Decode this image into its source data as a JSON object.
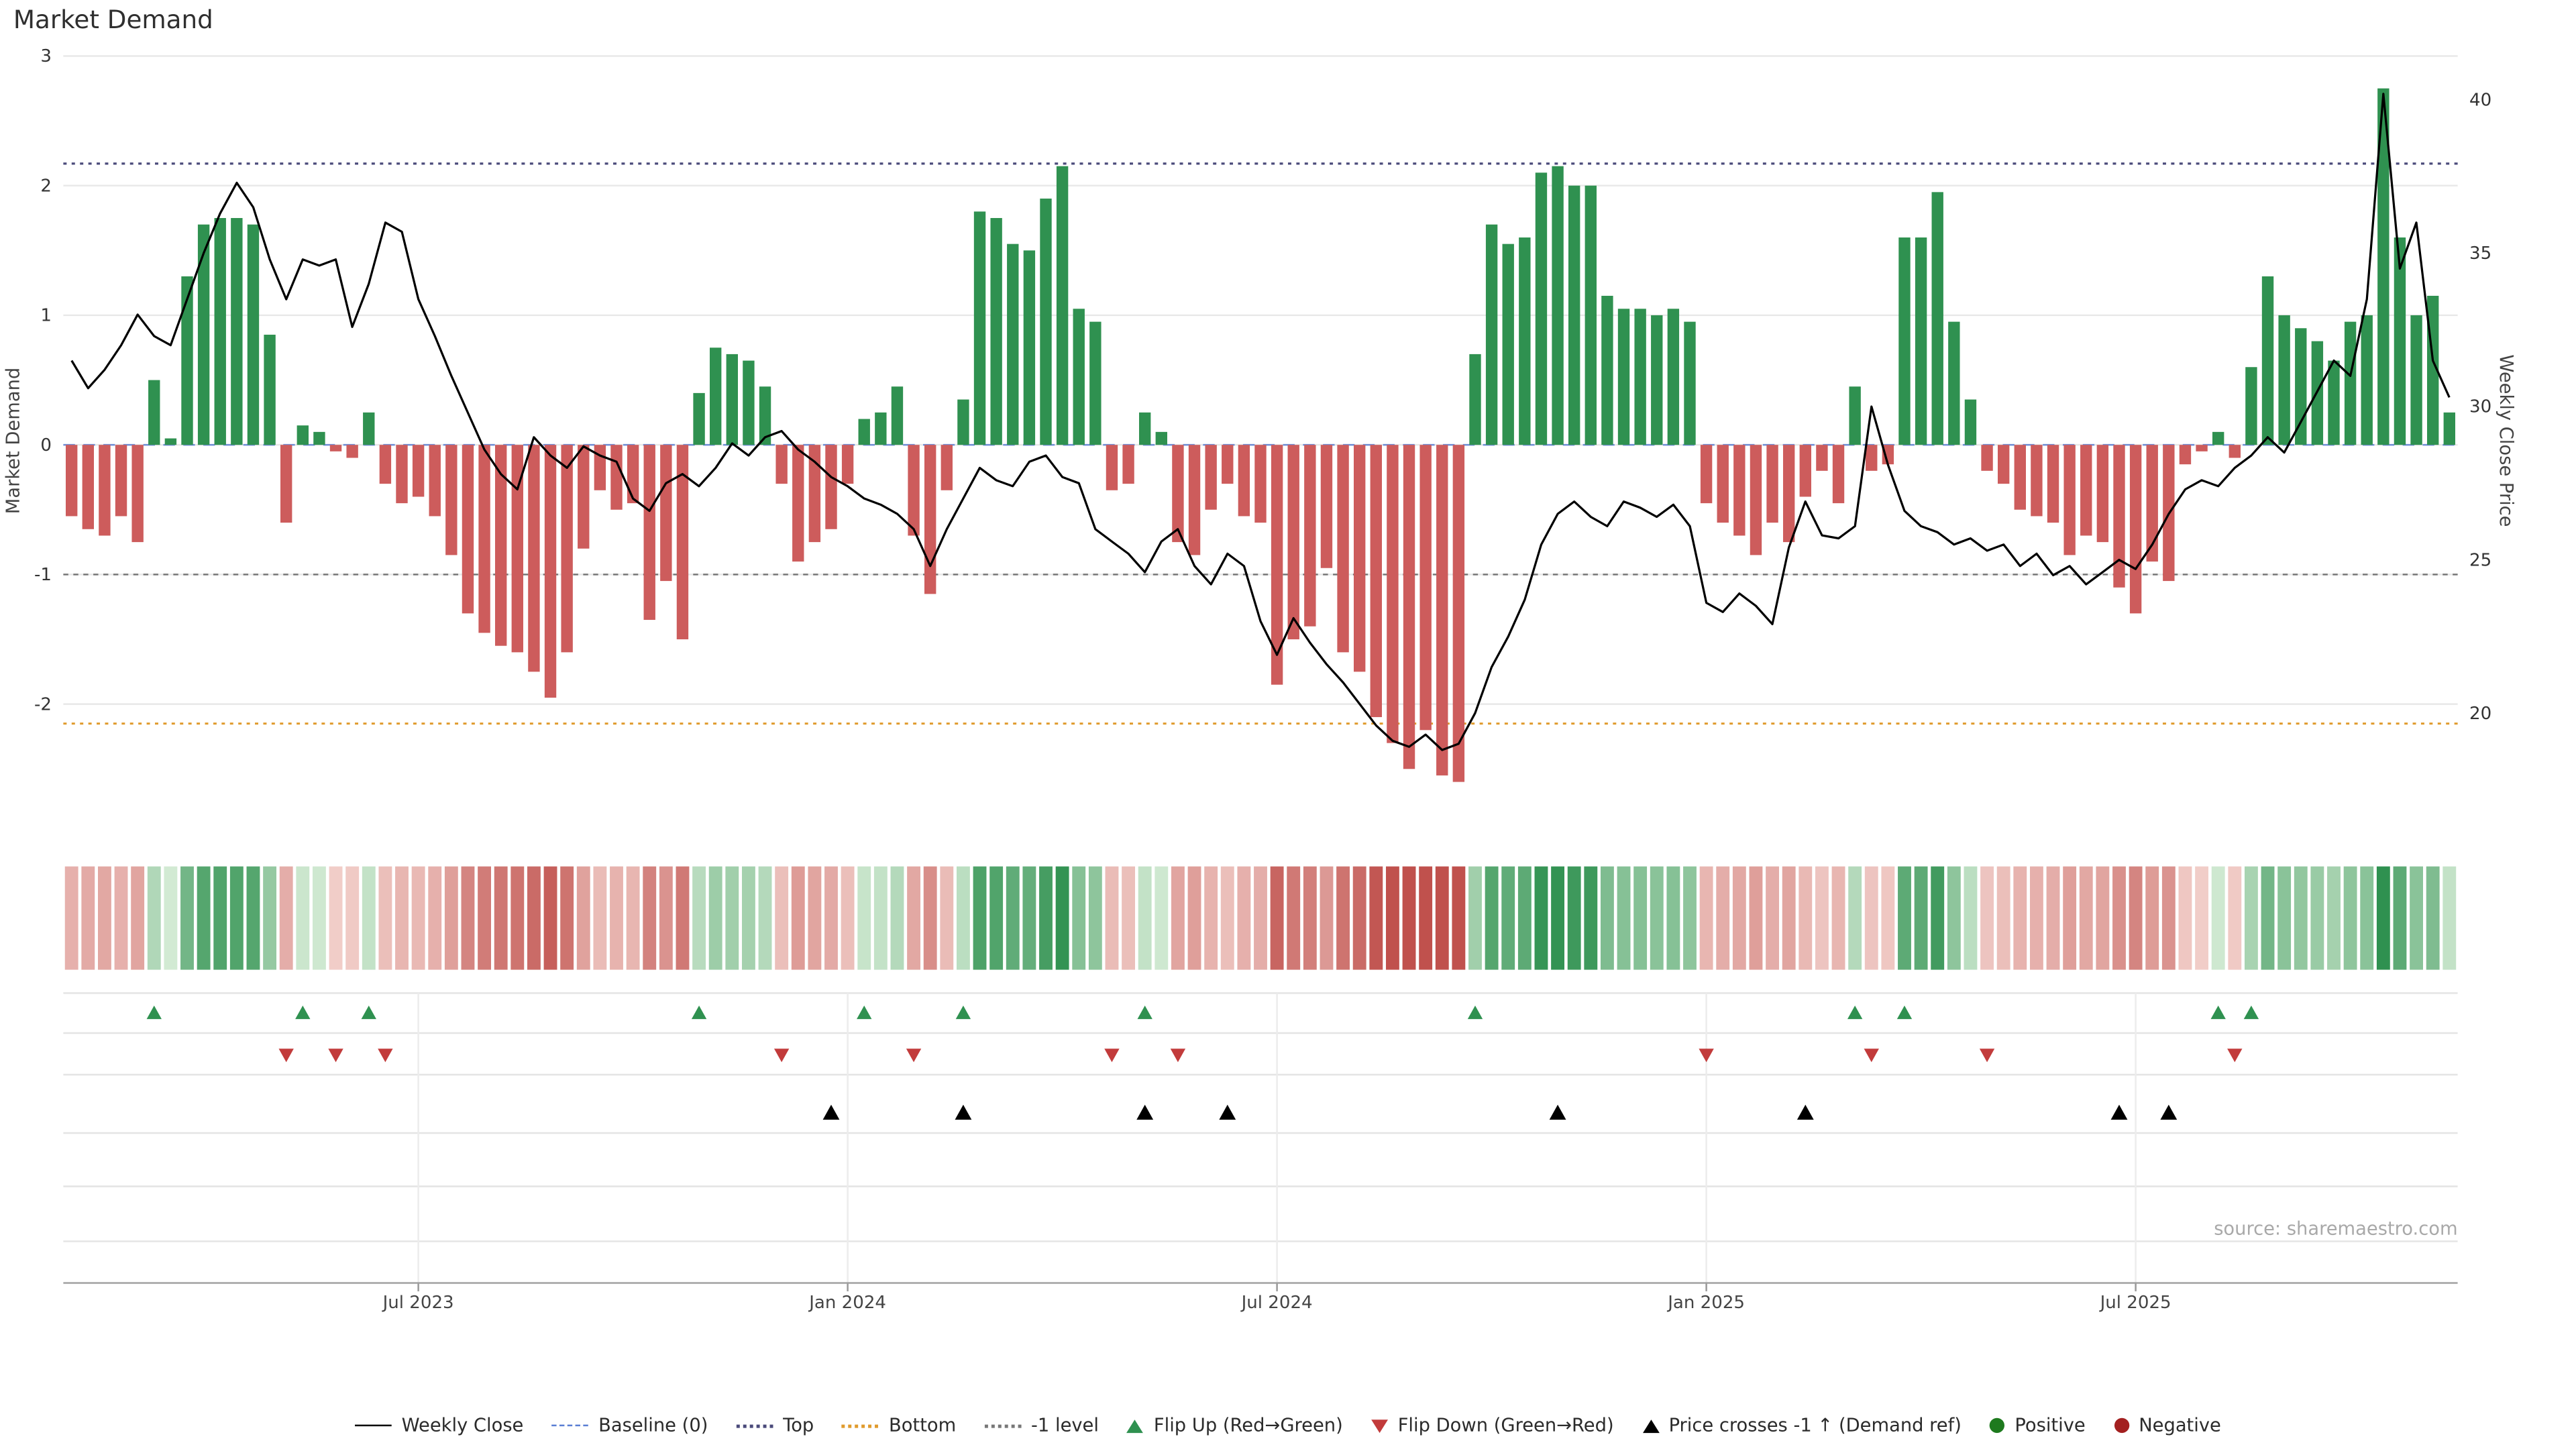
{
  "title": "Market Demand",
  "left_axis_label": "Market Demand",
  "right_axis_label": "Weekly Close Price",
  "source": "source: sharemaestro.com",
  "legend": [
    {
      "label": "Weekly Close",
      "type": "line",
      "color": "#000000"
    },
    {
      "label": "Baseline (0)",
      "type": "dashed",
      "color": "#5b7fd4"
    },
    {
      "label": "Top",
      "type": "dotted",
      "color": "#4a4a7a"
    },
    {
      "label": "Bottom",
      "type": "dotted",
      "color": "#e09b2d"
    },
    {
      "label": "-1 level",
      "type": "dotted",
      "color": "#777777"
    },
    {
      "label": "Flip Up (Red→Green)",
      "type": "triangle-up",
      "color": "#2f9150"
    },
    {
      "label": "Flip Down (Green→Red)",
      "type": "triangle-down",
      "color": "#c23b3b"
    },
    {
      "label": "Price crosses -1 ↑ (Demand ref)",
      "type": "triangle-up",
      "color": "#000000"
    },
    {
      "label": "Positive",
      "type": "dot",
      "color": "#1e7a1e"
    },
    {
      "label": "Negative",
      "type": "dot",
      "color": "#a32020"
    }
  ],
  "chart_data": {
    "type": "combo",
    "title": "Market Demand",
    "left_axis": {
      "label": "Market Demand",
      "ticks": [
        3,
        2,
        1,
        0,
        -1,
        -2
      ],
      "range": [
        -2.75,
        3.05
      ]
    },
    "right_axis": {
      "label": "Weekly Close Price",
      "ticks": [
        40,
        35,
        30,
        25,
        20
      ],
      "range": [
        18.5,
        41
      ]
    },
    "x_tick_labels": [
      "Jul 2023",
      "Jan 2024",
      "Jul 2024",
      "Jan 2025",
      "Jul 2025"
    ],
    "x_tick_weeks": [
      21,
      47,
      73,
      99,
      125
    ],
    "ref_lines": {
      "top": 2.17,
      "baseline": 0,
      "minus1": -1,
      "bottom": -2.15
    },
    "demand": [
      -0.55,
      -0.65,
      -0.7,
      -0.55,
      -0.75,
      0.5,
      0.05,
      1.3,
      1.7,
      1.75,
      1.75,
      1.7,
      0.85,
      -0.6,
      0.15,
      0.1,
      -0.05,
      -0.1,
      0.25,
      -0.3,
      -0.45,
      -0.4,
      -0.55,
      -0.85,
      -1.3,
      -1.45,
      -1.55,
      -1.6,
      -1.75,
      -1.95,
      -1.6,
      -0.8,
      -0.35,
      -0.5,
      -0.45,
      -1.35,
      -1.05,
      -1.5,
      0.4,
      0.75,
      0.7,
      0.65,
      0.45,
      -0.3,
      -0.9,
      -0.75,
      -0.65,
      -0.3,
      0.2,
      0.25,
      0.45,
      -0.7,
      -1.15,
      -0.35,
      0.35,
      1.8,
      1.75,
      1.55,
      1.5,
      1.9,
      2.15,
      1.05,
      0.95,
      -0.35,
      -0.3,
      0.25,
      0.1,
      -0.75,
      -0.85,
      -0.5,
      -0.3,
      -0.55,
      -0.6,
      -1.85,
      -1.5,
      -1.4,
      -0.95,
      -1.6,
      -1.75,
      -2.1,
      -2.3,
      -2.5,
      -2.2,
      -2.55,
      -2.6,
      0.7,
      1.7,
      1.55,
      1.6,
      2.1,
      2.15,
      2.0,
      2.0,
      1.15,
      1.05,
      1.05,
      1.0,
      1.05,
      0.95,
      -0.45,
      -0.6,
      -0.7,
      -0.85,
      -0.6,
      -0.75,
      -0.4,
      -0.2,
      -0.45,
      0.45,
      -0.2,
      -0.15,
      1.6,
      1.6,
      1.95,
      0.95,
      0.35,
      -0.2,
      -0.3,
      -0.5,
      -0.55,
      -0.6,
      -0.85,
      -0.7,
      -0.75,
      -1.1,
      -1.3,
      -0.9,
      -1.05,
      -0.15,
      -0.05,
      0.1,
      -0.1,
      0.6,
      1.3,
      1.0,
      0.9,
      0.8,
      0.65,
      0.95,
      1.0,
      2.75,
      1.6,
      1.0,
      1.15,
      0.25
    ],
    "price": [
      31.5,
      30.6,
      31.2,
      32.0,
      33.0,
      32.3,
      32.0,
      33.5,
      35.0,
      36.3,
      37.3,
      36.5,
      34.8,
      33.5,
      34.8,
      34.6,
      34.8,
      32.6,
      34.0,
      36.0,
      35.7,
      33.5,
      32.3,
      31.0,
      29.8,
      28.6,
      27.8,
      27.3,
      29.0,
      28.4,
      28.0,
      28.7,
      28.4,
      28.2,
      27.0,
      26.6,
      27.5,
      27.8,
      27.4,
      28.0,
      28.8,
      28.4,
      29.0,
      29.2,
      28.6,
      28.2,
      27.7,
      27.4,
      27.0,
      26.8,
      26.5,
      26.0,
      24.8,
      26.0,
      27.0,
      28.0,
      27.6,
      27.4,
      28.2,
      28.4,
      27.7,
      27.5,
      26.0,
      25.6,
      25.2,
      24.6,
      25.6,
      26.0,
      24.8,
      24.2,
      25.2,
      24.8,
      23.0,
      21.9,
      23.1,
      22.3,
      21.6,
      21.0,
      20.3,
      19.6,
      19.1,
      18.9,
      19.3,
      18.8,
      19.0,
      20.0,
      21.5,
      22.5,
      23.7,
      25.5,
      26.5,
      26.9,
      26.4,
      26.1,
      26.9,
      26.7,
      26.4,
      26.8,
      26.1,
      23.6,
      23.3,
      23.9,
      23.5,
      22.9,
      25.4,
      26.9,
      25.8,
      25.7,
      26.1,
      30.0,
      28.1,
      26.6,
      26.1,
      25.9,
      25.5,
      25.7,
      25.3,
      25.5,
      24.8,
      25.2,
      24.5,
      24.8,
      24.2,
      24.6,
      25.0,
      24.7,
      25.5,
      26.5,
      27.3,
      27.6,
      27.4,
      28.0,
      28.4,
      29.0,
      28.5,
      29.5,
      30.5,
      31.5,
      31.0,
      33.5,
      40.2,
      34.5,
      36.0,
      31.5,
      30.3
    ],
    "flip_up_weeks": [
      5,
      14,
      18,
      38,
      48,
      54,
      65,
      85,
      108,
      111,
      130,
      132
    ],
    "flip_down_weeks": [
      13,
      16,
      19,
      43,
      51,
      63,
      67,
      99,
      109,
      116,
      131
    ],
    "price_cross_weeks": [
      46,
      54,
      65,
      70,
      90,
      105,
      124,
      127
    ],
    "colors": {
      "bar_positive": "#2f9150",
      "bar_negative": "#cd5c5c",
      "price_line": "#000000",
      "baseline": "#5b7fd4",
      "top_line": "#4a4a7a",
      "bottom_line": "#e09b2d",
      "minus1_line": "#777777",
      "grid": "#e8e8e8",
      "flip_up": "#2f9150",
      "flip_down": "#c23b3b",
      "price_cross": "#000000",
      "heat_pos_light": "#d6ecd6",
      "heat_pos_dark": "#2f9150",
      "heat_neg_light": "#f2d0cb",
      "heat_neg_dark": "#c0514d"
    }
  }
}
